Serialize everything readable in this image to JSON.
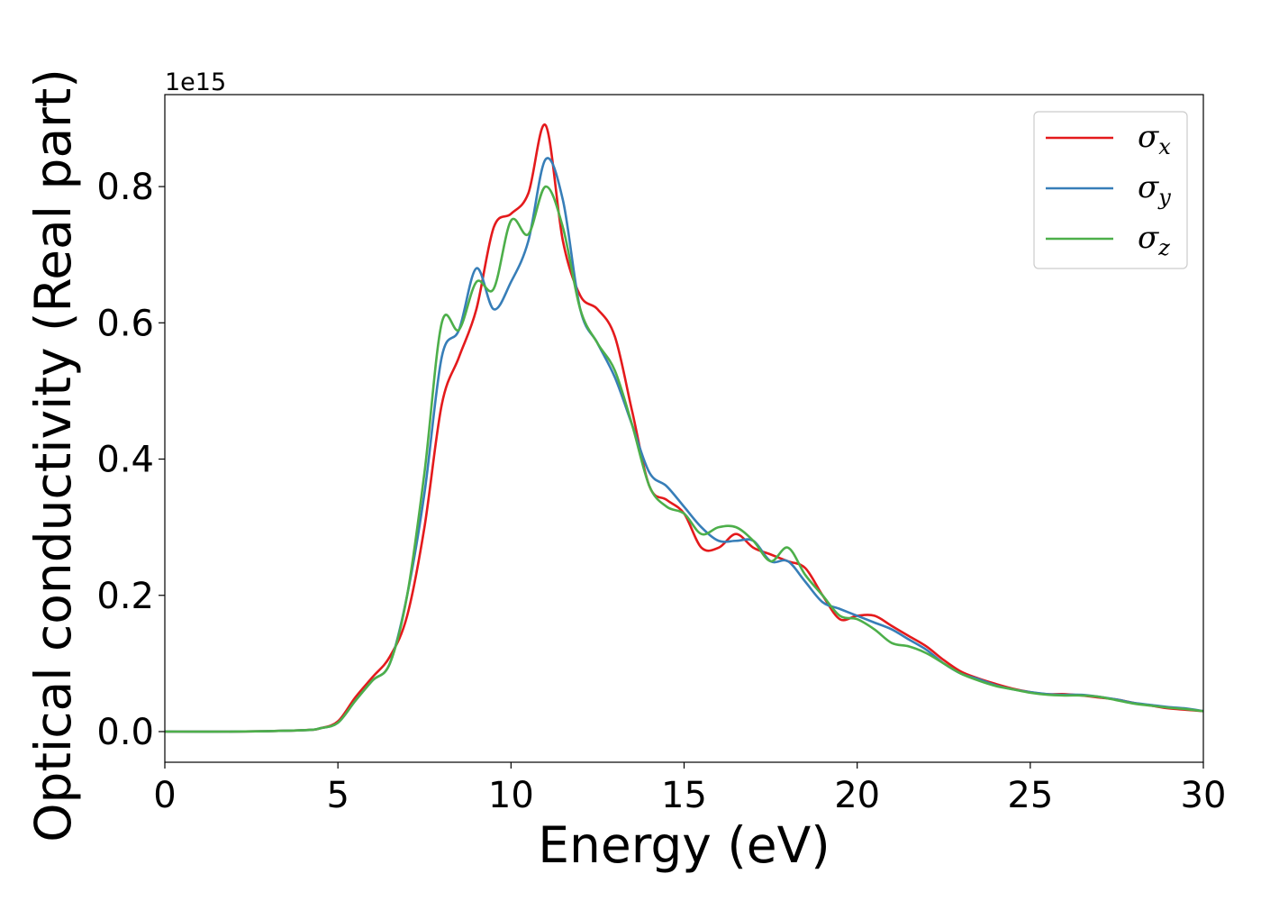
{
  "chart_data": {
    "type": "line",
    "title": "",
    "xlabel": "Energy (eV)",
    "ylabel": "Optical conductivity (Real part)",
    "y_offset_text": "1e15",
    "xlim": [
      0,
      30
    ],
    "ylim": [
      -0.045,
      0.935
    ],
    "x_ticks": [
      0,
      5,
      10,
      15,
      20,
      25,
      30
    ],
    "x_tick_labels": [
      "0",
      "5",
      "10",
      "15",
      "20",
      "25",
      "30"
    ],
    "y_ticks": [
      0.0,
      0.2,
      0.4,
      0.6,
      0.8
    ],
    "y_tick_labels": [
      "0.0",
      "0.2",
      "0.4",
      "0.6",
      "0.8"
    ],
    "grid": false,
    "legend_position": "top-right",
    "series": [
      {
        "label_symbol": "σ",
        "label_sub": "x",
        "color": "#e41a1c",
        "x": [
          0,
          2,
          4,
          4.5,
          5,
          5.5,
          6,
          6.5,
          7,
          7.5,
          8,
          8.5,
          9,
          9.5,
          10,
          10.5,
          11,
          11.5,
          12,
          12.5,
          13,
          13.5,
          14,
          14.5,
          15,
          15.5,
          16,
          16.5,
          17,
          17.5,
          18,
          18.5,
          19,
          19.5,
          20,
          20.5,
          21,
          21.5,
          22,
          22.5,
          23,
          23.5,
          24,
          24.5,
          25,
          25.5,
          26,
          26.5,
          27,
          27.5,
          28,
          28.5,
          29,
          29.5,
          30
        ],
        "y": [
          0.0,
          0.0,
          0.002,
          0.005,
          0.015,
          0.05,
          0.08,
          0.11,
          0.17,
          0.3,
          0.48,
          0.55,
          0.62,
          0.74,
          0.76,
          0.79,
          0.89,
          0.72,
          0.64,
          0.62,
          0.58,
          0.47,
          0.36,
          0.34,
          0.32,
          0.27,
          0.27,
          0.29,
          0.27,
          0.26,
          0.25,
          0.24,
          0.2,
          0.165,
          0.17,
          0.17,
          0.155,
          0.14,
          0.125,
          0.105,
          0.088,
          0.078,
          0.07,
          0.063,
          0.058,
          0.055,
          0.055,
          0.053,
          0.05,
          0.047,
          0.042,
          0.038,
          0.034,
          0.032,
          0.03
        ]
      },
      {
        "label_symbol": "σ",
        "label_sub": "y",
        "color": "#377eb8",
        "x": [
          0,
          2,
          4,
          4.5,
          5,
          5.5,
          6,
          6.5,
          7,
          7.5,
          8,
          8.5,
          9,
          9.5,
          10,
          10.5,
          11,
          11.5,
          12,
          12.5,
          13,
          13.5,
          14,
          14.5,
          15,
          15.5,
          16,
          16.5,
          17,
          17.5,
          18,
          18.5,
          19,
          19.5,
          20,
          20.5,
          21,
          21.5,
          22,
          22.5,
          23,
          23.5,
          24,
          24.5,
          25,
          25.5,
          26,
          26.5,
          27,
          27.5,
          28,
          28.5,
          29,
          29.5,
          30
        ],
        "y": [
          0.0,
          0.0,
          0.002,
          0.005,
          0.013,
          0.045,
          0.075,
          0.1,
          0.2,
          0.35,
          0.55,
          0.59,
          0.68,
          0.62,
          0.66,
          0.72,
          0.84,
          0.78,
          0.62,
          0.57,
          0.52,
          0.45,
          0.38,
          0.36,
          0.33,
          0.3,
          0.28,
          0.28,
          0.28,
          0.25,
          0.25,
          0.22,
          0.19,
          0.18,
          0.17,
          0.16,
          0.15,
          0.135,
          0.12,
          0.1,
          0.085,
          0.077,
          0.068,
          0.062,
          0.058,
          0.055,
          0.054,
          0.054,
          0.051,
          0.047,
          0.042,
          0.039,
          0.036,
          0.034,
          0.03
        ]
      },
      {
        "label_symbol": "σ",
        "label_sub": "z",
        "color": "#4daf4a",
        "x": [
          0,
          2,
          4,
          4.5,
          5,
          5.5,
          6,
          6.5,
          7,
          7.5,
          8,
          8.5,
          9,
          9.5,
          10,
          10.5,
          11,
          11.5,
          12,
          12.5,
          13,
          13.5,
          14,
          14.5,
          15,
          15.5,
          16,
          16.5,
          17,
          17.5,
          18,
          18.5,
          19,
          19.5,
          20,
          20.5,
          21,
          21.5,
          22,
          22.5,
          23,
          23.5,
          24,
          24.5,
          25,
          25.5,
          26,
          26.5,
          27,
          27.5,
          28,
          28.5,
          29,
          29.5,
          30
        ],
        "y": [
          0.0,
          0.0,
          0.002,
          0.005,
          0.013,
          0.045,
          0.075,
          0.1,
          0.2,
          0.38,
          0.6,
          0.59,
          0.66,
          0.65,
          0.75,
          0.73,
          0.8,
          0.74,
          0.62,
          0.57,
          0.53,
          0.45,
          0.36,
          0.33,
          0.32,
          0.29,
          0.3,
          0.3,
          0.28,
          0.25,
          0.27,
          0.23,
          0.2,
          0.17,
          0.165,
          0.15,
          0.13,
          0.125,
          0.115,
          0.1,
          0.085,
          0.075,
          0.067,
          0.062,
          0.057,
          0.054,
          0.053,
          0.053,
          0.051,
          0.046,
          0.041,
          0.038,
          0.035,
          0.033,
          0.03
        ]
      }
    ]
  }
}
